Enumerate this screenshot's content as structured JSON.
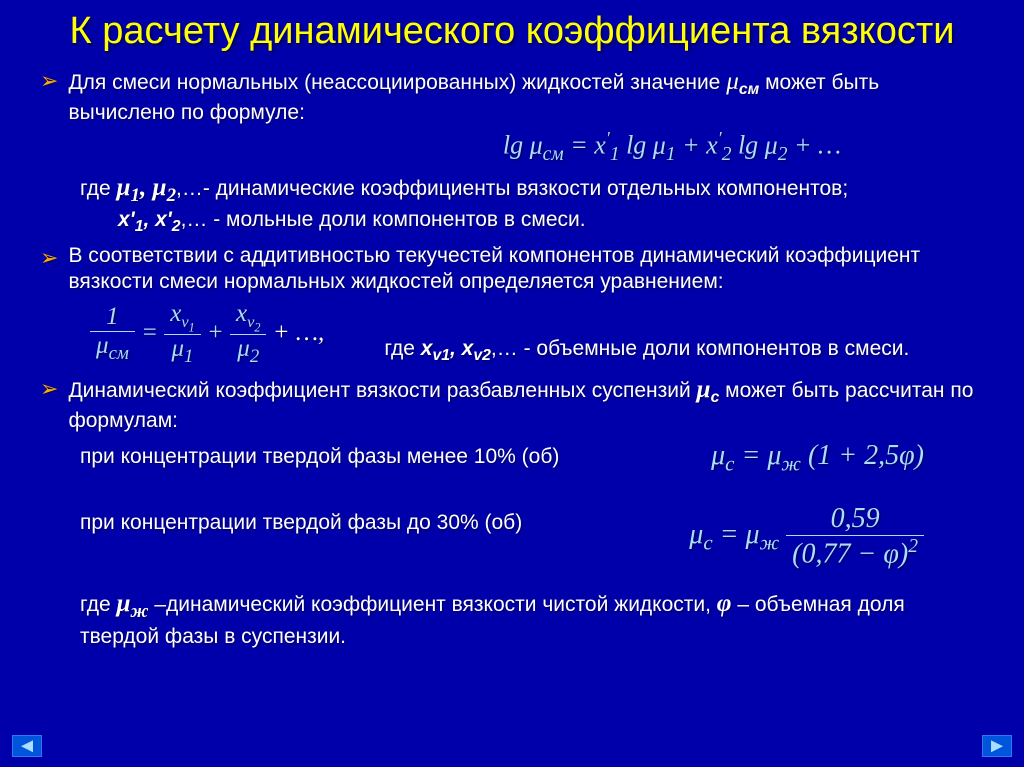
{
  "colors": {
    "background": "#0000aa",
    "title": "#ffff00",
    "bullet_marker": "#ffaa00",
    "text": "#ffffff",
    "formula": "#aaddff",
    "shadow": "#000055"
  },
  "typography": {
    "title_fontsize": 38,
    "body_fontsize": 21,
    "formula_fontsize": 26,
    "formula_family": "Times New Roman",
    "body_family": "Arial"
  },
  "title": "К расчету динамического коэффициента вязкости",
  "b1_pre": "Для смеси нормальных (неассоциированных) жидкостей значение ",
  "b1_sym": "μ",
  "b1_sub": "см",
  "b1_post": " может быть вычислено по формуле:",
  "f1": "lg μ<span class='sub'>см</span> = x<span class='sup'>′</span><span class='sub'>1</span> lg μ<span class='sub'>1</span> + x<span class='sup'>′</span><span class='sub'>2</span> lg μ<span class='sub'>2</span> + …",
  "w1": "где ",
  "w1_mu": "μ<span class='sub'>1</span>, μ<span class='sub'>2</span>",
  "w1_rest": ",…- динамические коэффициенты вязкости отдельных компонентов;",
  "w2_x": "x'<span class='sub'>1</span>, x'<span class='sub'>2</span>",
  "w2_rest": ",… - мольные доли компонентов в смеси.",
  "b2": "В соответствии с аддитивностью текучестей компонентов динамический коэффициент вязкости смеси нормальных жидкостей определяется уравнением:",
  "f2_1top": "1",
  "f2_1bot": "μ<span class='sub'>см</span>",
  "f2_eq": " = ",
  "f2_2top": "x<span class='sub' style='font-size:0.65em'>v<span class=\"sub\">1</span></span>",
  "f2_2bot": "μ<span class='sub'>1</span>",
  "f2_plus": " + ",
  "f2_3top": "x<span class='sub' style='font-size:0.65em'>v<span class=\"sub\">2</span></span>",
  "f2_3bot": "μ<span class='sub'>2</span>",
  "f2_end": " + …,",
  "w3_pre": "где ",
  "w3_x": "x<span class='sub'>v1</span>, x<span class='sub'>v2</span>",
  "w3_post": ",… - объемные доли компонентов в смеси.",
  "b3_pre": "Динамический коэффициент вязкости разбавленных суспензий ",
  "b3_sym": "μ",
  "b3_sub": "с",
  "b3_post": " может быть рассчитан по формулам:",
  "c1": "при концентрации твердой фазы менее 10% (об)",
  "f3a": "μ<span class='sub'>с</span> = μ<span class='sub'>ж</span> (1 + 2,5φ)",
  "c2": "при концентрации твердой фазы до 30% (об)",
  "f3b_pre": "μ<span class='sub'>с</span> = μ<span class='sub'>ж</span> ",
  "f3b_top": "0,59",
  "f3b_bot": "(0,77 − φ)<span class='sup'>2</span>",
  "w4_pre": "где ",
  "w4_mu": "μ<span class='sub'>ж</span>",
  "w4_mid": " –динамический коэффициент вязкости чистой жидкости, ",
  "w4_phi": "φ",
  "w4_post": " – объемная доля твердой фазы в суспензии.",
  "nav_prev": "◄",
  "nav_next": "►"
}
